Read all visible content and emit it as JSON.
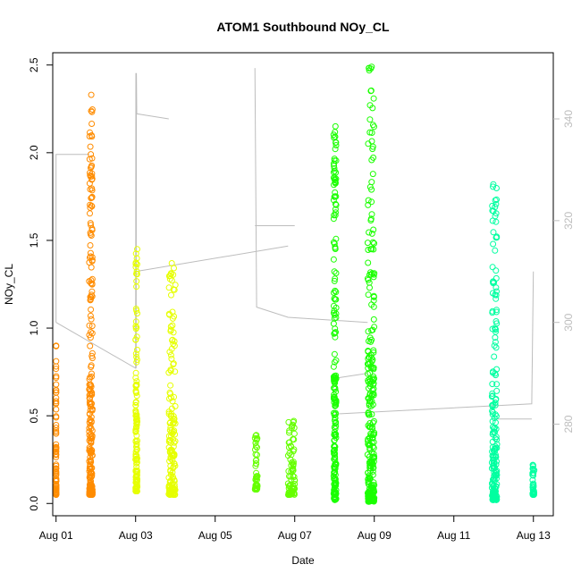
{
  "chart_data": {
    "type": "scatter",
    "title": "ATOM1 Southbound NOy_CL",
    "xlabel": "Date",
    "ylabel": "NOy_CL",
    "x_range": [
      "2016-07-31T22:00",
      "2016-08-13T12:00"
    ],
    "ylim": [
      -0.07,
      2.57
    ],
    "x_ticks": [
      {
        "x": "2016-08-01",
        "label": "Aug 01"
      },
      {
        "x": "2016-08-03",
        "label": "Aug 03"
      },
      {
        "x": "2016-08-05",
        "label": "Aug 05"
      },
      {
        "x": "2016-08-07",
        "label": "Aug 07"
      },
      {
        "x": "2016-08-09",
        "label": "Aug 09"
      },
      {
        "x": "2016-08-11",
        "label": "Aug 11"
      },
      {
        "x": "2016-08-13",
        "label": "Aug 13"
      }
    ],
    "y_ticks": [
      {
        "y": 0.0,
        "label": "0.0"
      },
      {
        "y": 0.5,
        "label": "0.5"
      },
      {
        "y": 1.0,
        "label": "1.0"
      },
      {
        "y": 1.5,
        "label": "1.5"
      },
      {
        "y": 2.0,
        "label": "2.0"
      },
      {
        "y": 2.5,
        "label": "2.5"
      }
    ],
    "y2_range": [
      262,
      353
    ],
    "y2_ticks": [
      {
        "y": 280,
        "label": "280"
      },
      {
        "y": 300,
        "label": "300"
      },
      {
        "y": 320,
        "label": "320"
      },
      {
        "y": 340,
        "label": "340"
      }
    ],
    "grid": false,
    "point_series": [
      {
        "color": "#ff8c00",
        "x_from": "2016-08-01T00:00",
        "x_to": "2016-08-01T00:05",
        "y_low": 0.05,
        "y_high": 0.9
      },
      {
        "color": "#ff8c00",
        "x_from": "2016-08-01T20:00",
        "x_to": "2016-08-01T22:00",
        "y_low": 0.05,
        "y_high": 2.33
      },
      {
        "color": "#e6ff00",
        "x_from": "2016-08-03T00:00",
        "x_to": "2016-08-03T01:00",
        "y_low": 0.07,
        "y_high": 1.45
      },
      {
        "color": "#e6ff00",
        "x_from": "2016-08-03T20:00",
        "x_to": "2016-08-04T00:00",
        "y_low": 0.05,
        "y_high": 1.37
      },
      {
        "color": "#66ff00",
        "x_from": "2016-08-06T00:00",
        "x_to": "2016-08-06T01:30",
        "y_low": 0.08,
        "y_high": 0.39
      },
      {
        "color": "#66ff00",
        "x_from": "2016-08-06T20:00",
        "x_to": "2016-08-07T00:00",
        "y_low": 0.05,
        "y_high": 0.47
      },
      {
        "color": "#1aff00",
        "x_from": "2016-08-07T23:30",
        "x_to": "2016-08-08T01:00",
        "y_low": 0.02,
        "y_high": 2.15
      },
      {
        "color": "#1aff00",
        "x_from": "2016-08-08T20:00",
        "x_to": "2016-08-09T00:00",
        "y_low": 0.01,
        "y_high": 2.49
      },
      {
        "color": "#00ffa0",
        "x_from": "2016-08-11T23:00",
        "x_to": "2016-08-12T02:00",
        "y_low": 0.02,
        "y_high": 1.82
      },
      {
        "color": "#00ffa0",
        "x_from": "2016-08-12T23:30",
        "x_to": "2016-08-13T00:30",
        "y_low": 0.05,
        "y_high": 0.22
      }
    ],
    "track_color": "#bdbdbd",
    "track_segments": [
      [
        [
          "2016-08-01T00:00",
          300
        ],
        [
          "2016-08-01T00:00",
          333
        ],
        [
          "2016-08-01T20:00",
          333
        ]
      ],
      [
        [
          "2016-08-01T00:00",
          300
        ],
        [
          "2016-08-03T00:00",
          291
        ],
        [
          "2016-08-03T00:10",
          349
        ],
        [
          "2016-08-03T00:20",
          291
        ],
        [
          "2016-08-03T00:30",
          349
        ],
        [
          "2016-08-03T00:40",
          341
        ],
        [
          "2016-08-03T20:00",
          340
        ]
      ],
      [
        [
          "2016-08-03T00:00",
          310
        ],
        [
          "2016-08-06T20:00",
          315
        ]
      ],
      [
        [
          "2016-08-06T00:00",
          350
        ],
        [
          "2016-08-06T01:00",
          303
        ],
        [
          "2016-08-06T20:00",
          301
        ],
        [
          "2016-08-08T20:00",
          300
        ]
      ],
      [
        [
          "2016-08-06T00:00",
          319
        ],
        [
          "2016-08-07T00:00",
          319
        ]
      ],
      [
        [
          "2016-08-08T00:00",
          282
        ],
        [
          "2016-08-12T23:00",
          284
        ],
        [
          "2016-08-13T00:00",
          310
        ]
      ],
      [
        [
          "2016-08-08T00:00",
          289
        ],
        [
          "2016-08-08T20:00",
          290
        ]
      ],
      [
        [
          "2016-08-12T00:00",
          281
        ],
        [
          "2016-08-12T23:00",
          281
        ]
      ]
    ]
  }
}
